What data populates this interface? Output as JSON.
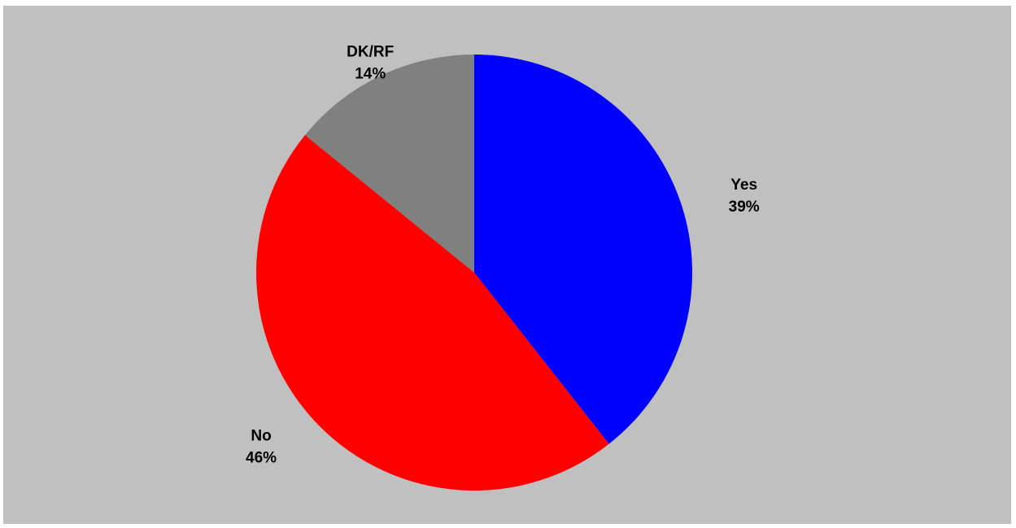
{
  "chart_data": {
    "type": "pie",
    "start_angle": 0,
    "direction": "clockwise",
    "slices": [
      {
        "label": "Yes",
        "value": 39,
        "percent_label": "39%",
        "color": "#0000ff"
      },
      {
        "label": "No",
        "value": 46,
        "percent_label": "46%",
        "color": "#ff0000"
      },
      {
        "label": "DK/RF",
        "value": 14,
        "percent_label": "14%",
        "color": "#808080"
      }
    ],
    "background_color": "#c0c0c0"
  }
}
